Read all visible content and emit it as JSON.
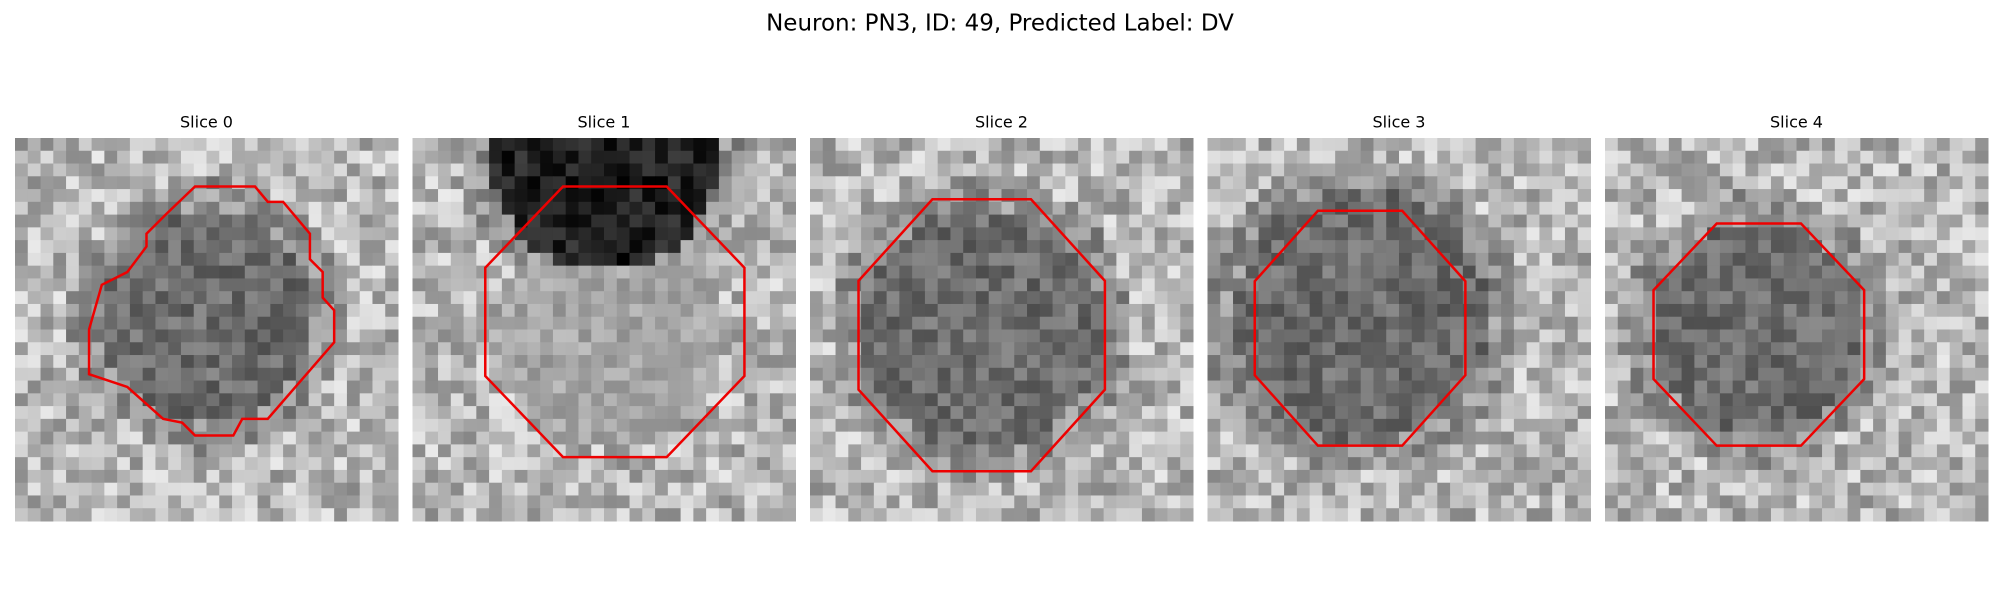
{
  "title": "Neuron: PN3, ID: 49, Predicted Label: DV",
  "panels": [
    {
      "title": "Slice 0"
    },
    {
      "title": "Slice 1"
    },
    {
      "title": "Slice 2"
    },
    {
      "title": "Slice 3"
    },
    {
      "title": "Slice 4"
    }
  ]
}
